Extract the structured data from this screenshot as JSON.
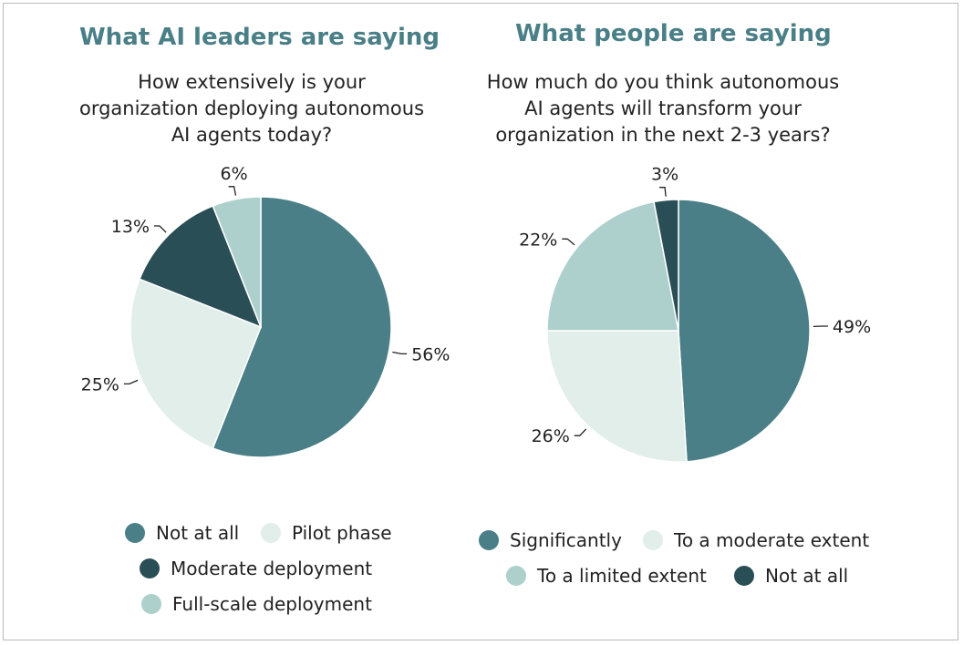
{
  "chart_data": [
    {
      "type": "pie",
      "title": "What AI leaders are saying",
      "subtitle": "How extensively is your organization deploying autonomous AI agents today?",
      "slices": [
        {
          "label": "Not at all",
          "value": 56,
          "value_label": "56%",
          "color": "#4a7f87"
        },
        {
          "label": "Pilot phase",
          "value": 25,
          "value_label": "25%",
          "color": "#e1eeea"
        },
        {
          "label": "Moderate deployment",
          "value": 13,
          "value_label": "13%",
          "color": "#2a4e56"
        },
        {
          "label": "Full-scale deployment",
          "value": 6,
          "value_label": "6%",
          "color": "#add0cd"
        }
      ]
    },
    {
      "type": "pie",
      "title": "What people are saying",
      "subtitle": "How much do you think autonomous AI agents will transform your organization in the next 2-3 years?",
      "slices": [
        {
          "label": "Significantly",
          "value": 49,
          "value_label": "49%",
          "color": "#4a7f87"
        },
        {
          "label": "To a moderate extent",
          "value": 26,
          "value_label": "26%",
          "color": "#e1eeea"
        },
        {
          "label": "To a limited extent",
          "value": 22,
          "value_label": "22%",
          "color": "#add0cd"
        },
        {
          "label": "Not at all",
          "value": 3,
          "value_label": "3%",
          "color": "#2a4e56"
        }
      ]
    }
  ],
  "left": {
    "heading": "What AI leaders are saying",
    "question_lines": [
      "How extensively is your",
      "organization deploying autonomous",
      "AI agents today?"
    ]
  },
  "right": {
    "heading": "What people are saying",
    "question_lines": [
      "How much do you think autonomous",
      "AI agents will transform your",
      "organization in the next 2-3 years?"
    ]
  }
}
